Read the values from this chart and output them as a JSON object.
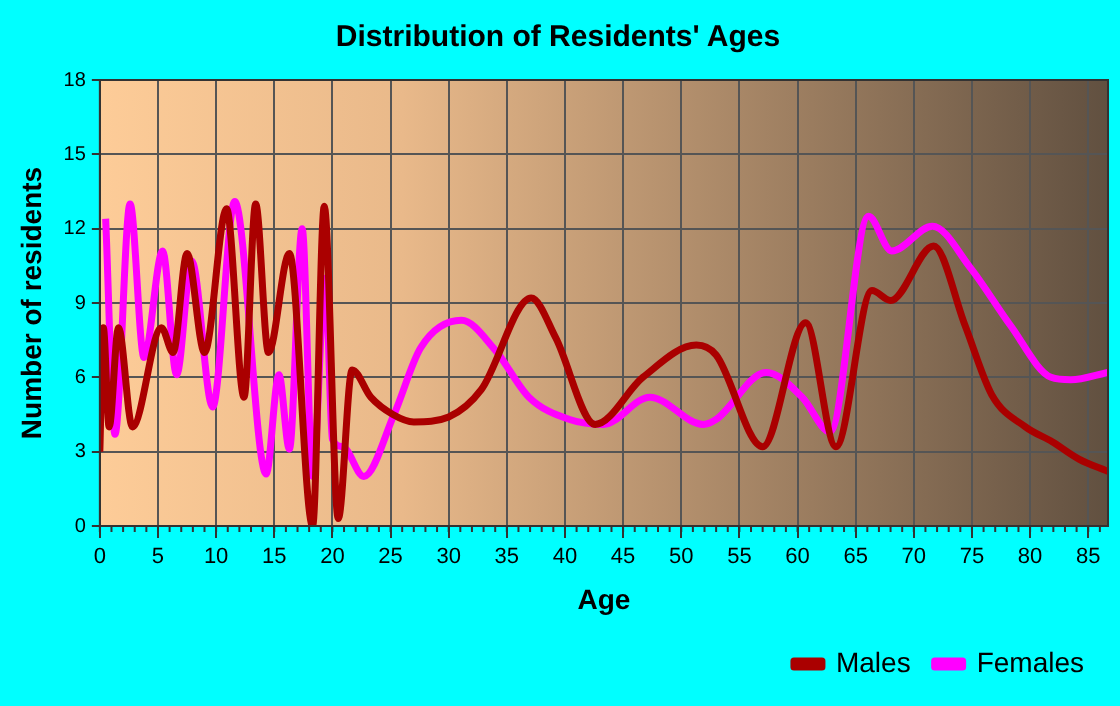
{
  "chart_data": {
    "type": "line",
    "title": "Distribution of Residents' Ages",
    "xlabel": "Age",
    "ylabel": "Number of residents",
    "xlim": [
      0,
      86.7
    ],
    "xticks": [
      0,
      5,
      10,
      15,
      20,
      25,
      30,
      35,
      40,
      45,
      50,
      55,
      60,
      65,
      70,
      75,
      80,
      85
    ],
    "ylim": [
      0,
      18
    ],
    "yticks": [
      0,
      3,
      6,
      9,
      12,
      15,
      18
    ],
    "grid": true,
    "legend": "bottom right",
    "marker": "none",
    "line_style": "solid",
    "series": [
      {
        "name": "Males",
        "color": "#aa0000",
        "x": [
          0,
          0.3,
          0.8,
          1.6,
          2.8,
          5.3,
          6.3,
          7.5,
          9,
          10.9,
          12.4,
          13.4,
          14.5,
          16.3,
          18.3,
          19.3,
          20.5,
          21.7,
          23.3,
          25.2,
          27,
          30,
          32.8,
          37.1,
          39.2,
          42.6,
          46.7,
          51.3,
          53,
          57,
          60.7,
          63.3,
          66.4,
          68,
          71.7,
          74.4,
          76.7,
          79.6,
          81.9,
          84.2,
          86.7
        ],
        "values": [
          3,
          8,
          4,
          8,
          4,
          8,
          7,
          11,
          7,
          12.8,
          5.2,
          13,
          7,
          11,
          0,
          12.9,
          0.3,
          6.3,
          5.2,
          4.5,
          4.2,
          4.4,
          5.5,
          9.2,
          7.6,
          4.1,
          6,
          7.3,
          6.9,
          3.2,
          8.2,
          3.2,
          9.5,
          9.1,
          11.3,
          8.1,
          5.3,
          4,
          3.4,
          2.7,
          2.2
        ]
      },
      {
        "name": "Females",
        "color": "#ff00ff",
        "x": [
          0.5,
          1.3,
          2.6,
          3.8,
          5.4,
          6.6,
          7.9,
          9.7,
          11.6,
          14.3,
          15.4,
          16.3,
          17.4,
          18.3,
          19.4,
          20,
          20.9,
          22.7,
          25.3,
          27.6,
          31.1,
          34,
          36.9,
          40.4,
          43.3,
          47.3,
          51.9,
          53,
          57.3,
          60.4,
          62.8,
          66.1,
          68.1,
          71.6,
          74.9,
          78.3,
          81.8,
          83.5,
          86.7
        ],
        "values": [
          12.4,
          3.7,
          13,
          6.8,
          11.1,
          6.1,
          10.7,
          4.8,
          13.1,
          2.1,
          6.1,
          3.1,
          12,
          2,
          10,
          3.5,
          3.2,
          2,
          4.5,
          7.2,
          8.3,
          7.1,
          5.2,
          4.3,
          4.1,
          5.2,
          4.1,
          4.3,
          6.2,
          5.2,
          3.8,
          12.5,
          11.1,
          12.1,
          10.4,
          8.1,
          6,
          5.9,
          6.2
        ]
      }
    ]
  }
}
